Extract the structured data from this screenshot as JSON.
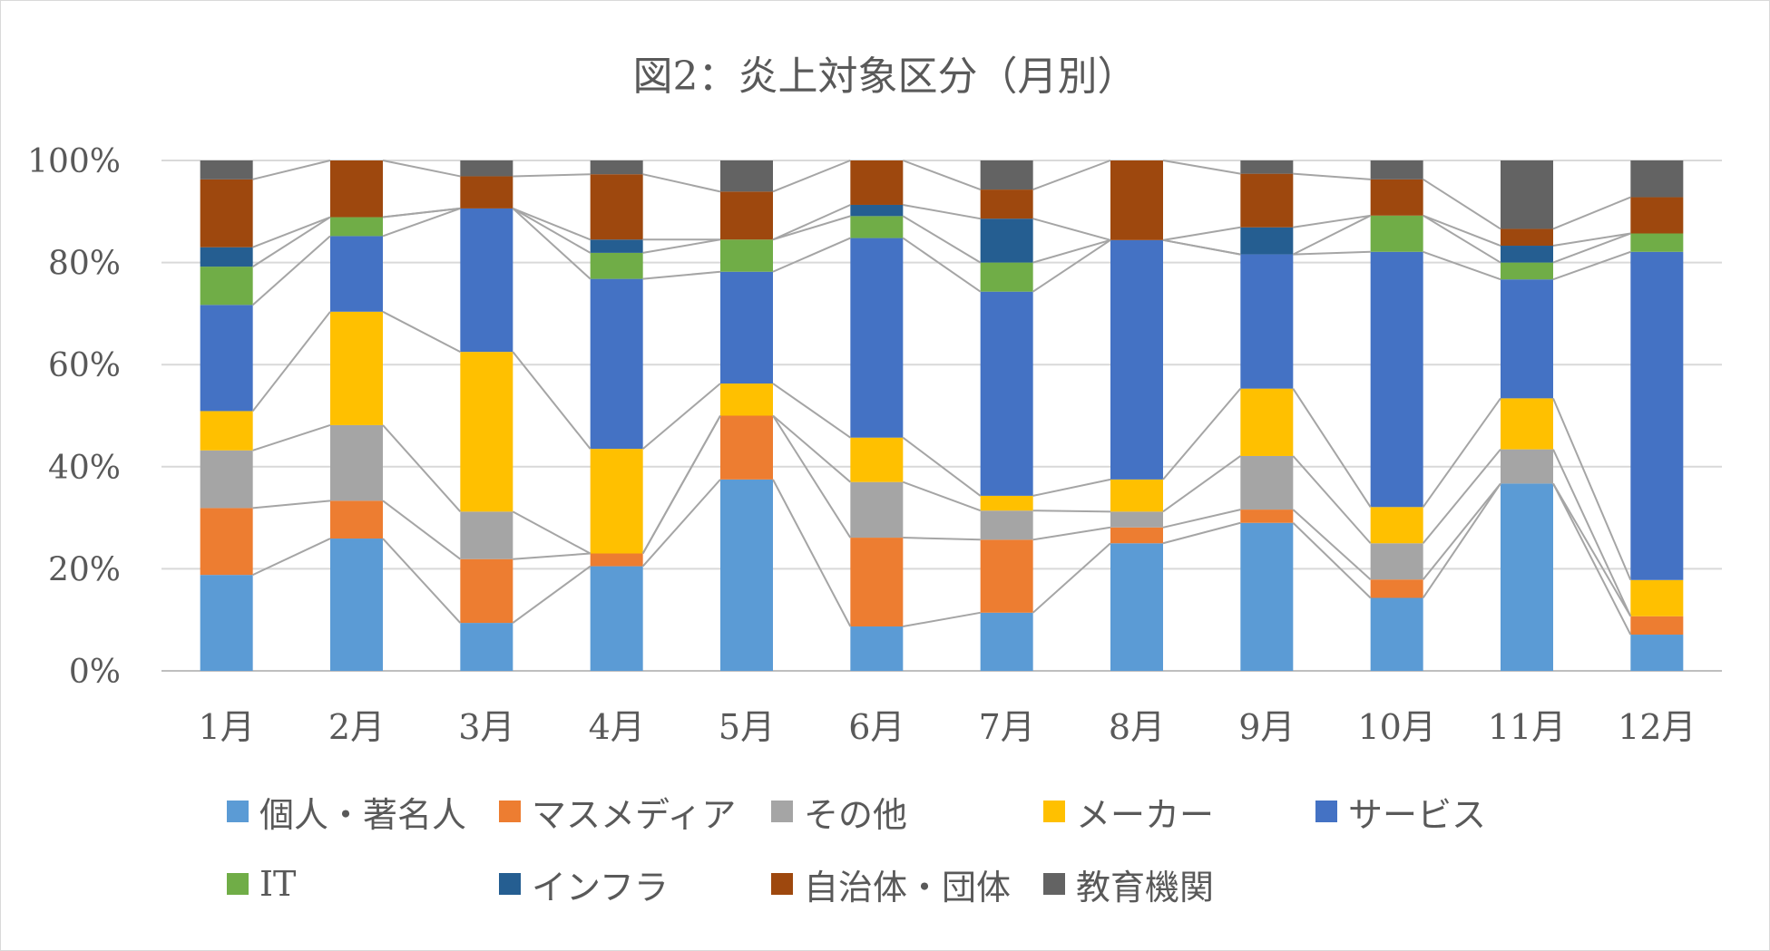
{
  "chart_data": {
    "type": "bar",
    "stacked": true,
    "percent": true,
    "title": "図2：炎上対象区分（月別）",
    "categories": [
      "1月",
      "2月",
      "3月",
      "4月",
      "5月",
      "6月",
      "7月",
      "8月",
      "9月",
      "10月",
      "11月",
      "12月"
    ],
    "yticks": [
      "0%",
      "20%",
      "40%",
      "60%",
      "80%",
      "100%"
    ],
    "ylim": [
      0,
      100
    ],
    "grid": true,
    "legend_position": "bottom",
    "series_lines": true,
    "series": [
      {
        "name": "個人・著名人",
        "color": "#5b9bd5",
        "values": [
          18.8,
          25.9,
          9.4,
          20.5,
          37.5,
          8.7,
          11.4,
          25.0,
          29.0,
          14.3,
          36.7,
          7.1
        ]
      },
      {
        "name": "マスメディア",
        "color": "#ed7d31",
        "values": [
          13.1,
          7.4,
          12.5,
          2.5,
          12.5,
          17.4,
          14.3,
          3.1,
          2.6,
          3.6,
          0.0,
          3.6
        ]
      },
      {
        "name": "その他",
        "color": "#a5a5a5",
        "values": [
          11.3,
          14.8,
          9.3,
          0.0,
          0.0,
          10.9,
          5.7,
          3.1,
          10.5,
          7.1,
          6.7,
          0.0
        ]
      },
      {
        "name": "メーカー",
        "color": "#ffc000",
        "values": [
          7.7,
          22.2,
          31.3,
          20.5,
          6.3,
          8.7,
          2.9,
          6.3,
          13.2,
          7.1,
          10.0,
          7.1
        ]
      },
      {
        "name": "サービス",
        "color": "#4472c4",
        "values": [
          20.8,
          14.8,
          28.1,
          33.3,
          21.9,
          39.1,
          40.0,
          46.9,
          26.3,
          50.0,
          23.3,
          64.3
        ]
      },
      {
        "name": "IT",
        "color": "#70ad47",
        "values": [
          7.5,
          3.7,
          0.0,
          5.1,
          6.3,
          4.3,
          5.7,
          0.0,
          0.0,
          7.1,
          3.3,
          3.6
        ]
      },
      {
        "name": "インフラ",
        "color": "#255e91",
        "values": [
          3.8,
          0.0,
          0.0,
          2.6,
          0.0,
          2.2,
          8.6,
          0.0,
          5.3,
          0.0,
          3.3,
          0.0
        ]
      },
      {
        "name": "自治体・団体",
        "color": "#9e480e",
        "values": [
          13.3,
          11.1,
          6.3,
          12.8,
          9.4,
          8.7,
          5.7,
          15.6,
          10.5,
          7.1,
          3.3,
          7.1
        ]
      },
      {
        "name": "教育機関",
        "color": "#636363",
        "values": [
          3.7,
          0.0,
          3.1,
          2.7,
          6.1,
          0.0,
          5.7,
          0.0,
          2.6,
          3.7,
          13.4,
          7.2
        ]
      }
    ]
  }
}
